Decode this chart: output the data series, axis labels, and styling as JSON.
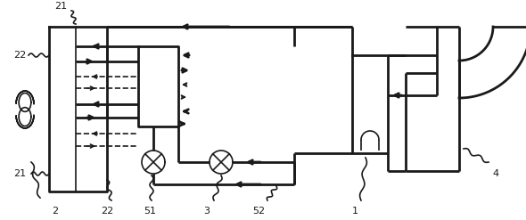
{
  "bg_color": "#ffffff",
  "line_color": "#1a1a1a",
  "fig_width": 5.9,
  "fig_height": 2.47,
  "dpi": 100
}
